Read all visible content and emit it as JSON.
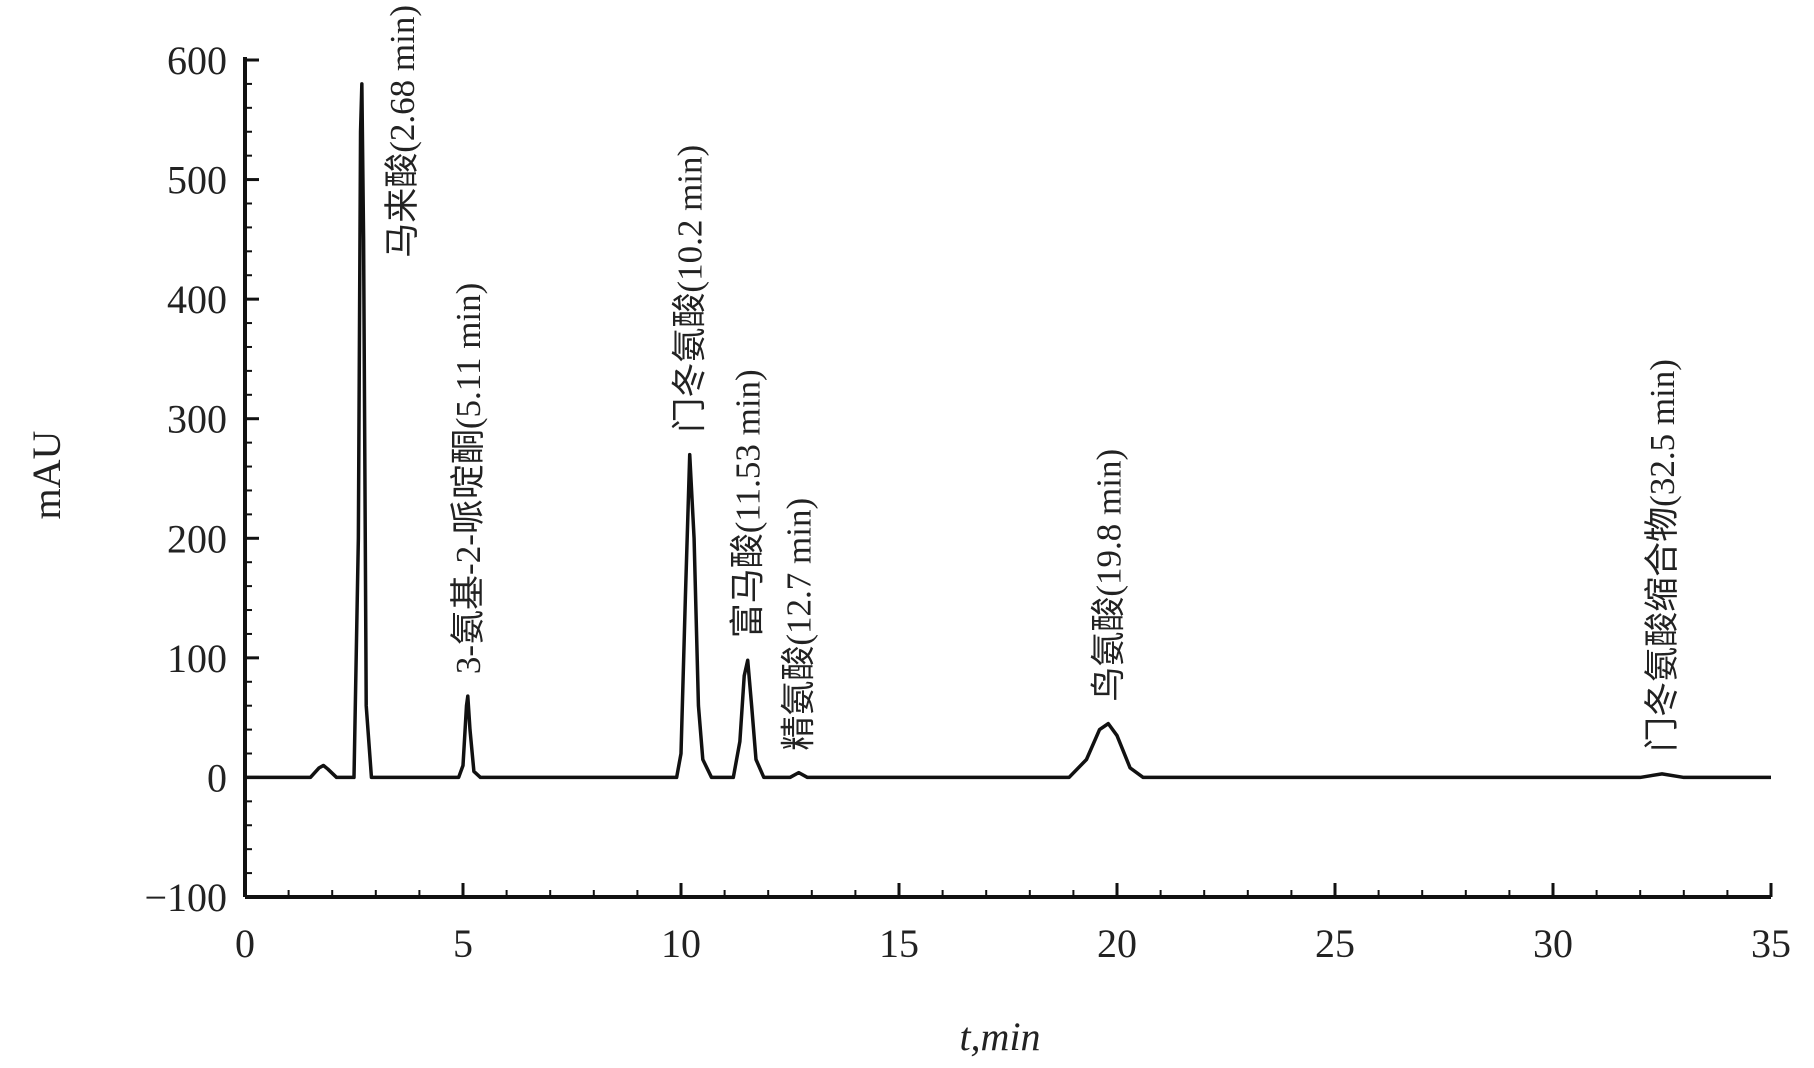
{
  "chart_data": {
    "type": "line",
    "xlabel": "t,min",
    "ylabel": "mAU",
    "xlim": [
      0,
      35
    ],
    "xticks": [
      0,
      5,
      10,
      15,
      20,
      25,
      30,
      35
    ],
    "ylim": [
      -100,
      600
    ],
    "yticks": [
      {
        "value": -100,
        "label": "−100"
      },
      0,
      100,
      200,
      300,
      400,
      500,
      600
    ],
    "series": [
      {
        "color": "#111111",
        "x": [
          0,
          1.5,
          1.7,
          1.8,
          1.9,
          2.1,
          2.5,
          2.6,
          2.65,
          2.68,
          2.72,
          2.78,
          2.9,
          4.9,
          5.0,
          5.08,
          5.11,
          5.16,
          5.25,
          5.4,
          9.9,
          10.0,
          10.1,
          10.2,
          10.3,
          10.4,
          10.5,
          10.7,
          11.2,
          11.35,
          11.45,
          11.53,
          11.62,
          11.72,
          11.9,
          12.5,
          12.7,
          12.9,
          18.9,
          19.3,
          19.6,
          19.8,
          20.0,
          20.3,
          20.6,
          32.0,
          32.5,
          33.0,
          35
        ],
        "values": [
          0,
          0,
          8,
          10,
          7,
          0,
          0,
          200,
          540,
          580,
          450,
          60,
          0,
          0,
          10,
          60,
          68,
          40,
          5,
          0,
          0,
          20,
          150,
          270,
          200,
          60,
          15,
          0,
          0,
          30,
          85,
          98,
          60,
          15,
          0,
          0,
          4,
          0,
          0,
          15,
          40,
          45,
          35,
          8,
          0,
          0,
          3,
          0,
          0
        ]
      }
    ],
    "annotations": [
      {
        "text": "马来酸(2.68 min)",
        "x": 2.68
      },
      {
        "text": "3-氨基-2-哌啶酮(5.11 min)",
        "x": 5.11
      },
      {
        "text": "门冬氨酸(10.2 min)",
        "x": 10.2
      },
      {
        "text": "富马酸(11.53 min)",
        "x": 11.53
      },
      {
        "text": "精氨酸(12.7 min)",
        "x": 12.7
      },
      {
        "text": "鸟氨酸(19.8 min)",
        "x": 19.8
      },
      {
        "text": "门冬氨酸缩合物(32.5 min)",
        "x": 32.5
      }
    ]
  }
}
